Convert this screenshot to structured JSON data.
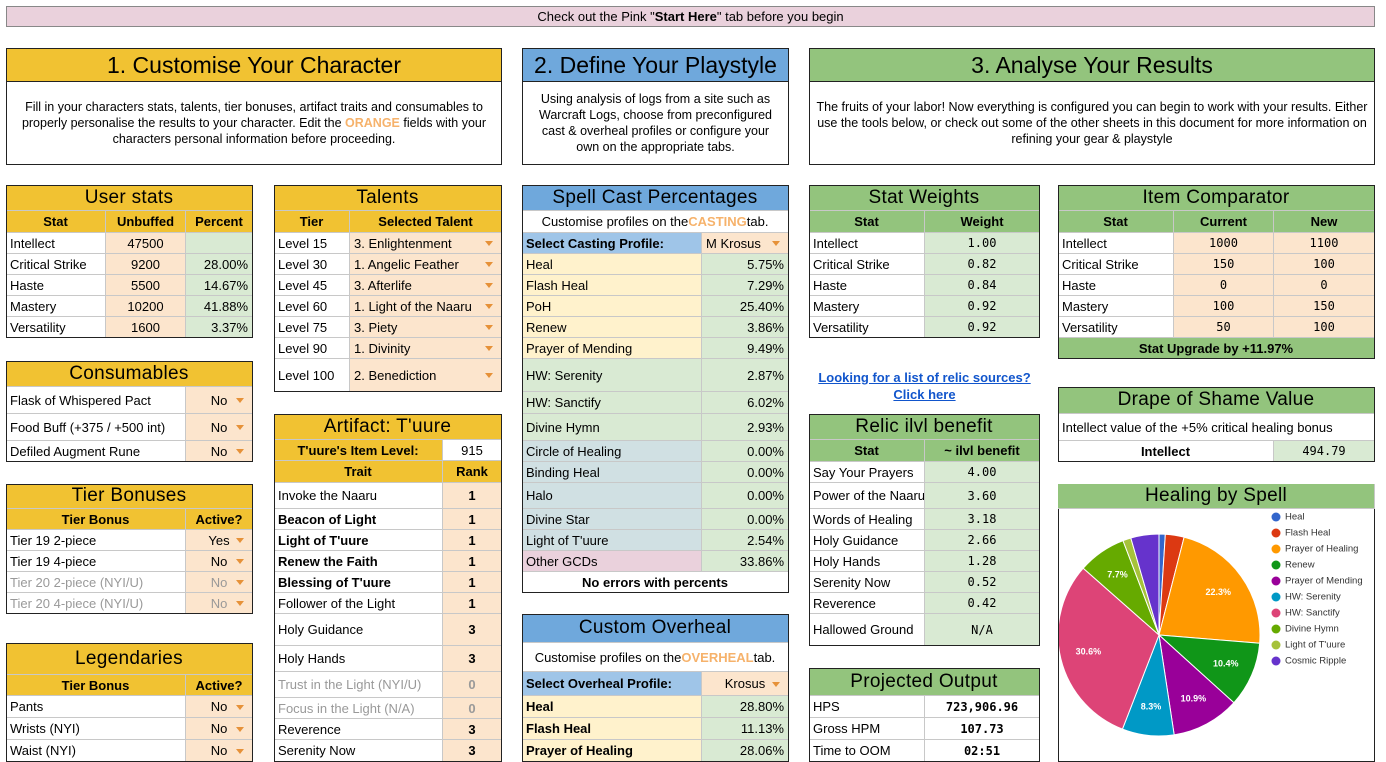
{
  "banner": {
    "before": "Check out the Pink \"",
    "bold": "Start Here",
    "after": "\" tab before you begin"
  },
  "sections": [
    {
      "title": "1. Customise Your Character",
      "description": {
        "before": "Fill in your characters stats, talents, tier bonuses, artifact traits and consumables to properly personalise the results to your character. Edit the ",
        "highlight": "ORANGE",
        "after": " fields with your characters personal information before proceeding."
      }
    },
    {
      "title": "2. Define Your Playstyle",
      "description": "Using analysis of logs from a site such as Warcraft Logs, choose from preconfigured cast & overheal profiles or configure your own on the appropriate tabs."
    },
    {
      "title": "3. Analyse Your Results",
      "description": "The fruits of your labor! Now everything is configured you can begin to work with your results. Either use the tools below, or check out some of the other sheets in this document for more information on refining your gear & playstyle"
    }
  ],
  "panels": {
    "user_stats": {
      "title": "User stats",
      "header": [
        "Stat",
        "Unbuffed",
        "Percent"
      ],
      "rows": [
        [
          "Intellect",
          "47500",
          null
        ],
        [
          "Critical Strike",
          "9200",
          "28.00%"
        ],
        [
          "Haste",
          "5500",
          "14.67%"
        ],
        [
          "Mastery",
          "10200",
          "41.88%"
        ],
        [
          "Versatility",
          "1600",
          "3.37%"
        ]
      ]
    },
    "consumables": {
      "title": "Consumables",
      "rows": [
        [
          "Flask of Whispered Pact",
          "No"
        ],
        [
          "Food Buff (+375 / +500 int)",
          "No"
        ],
        [
          "Defiled Augment Rune",
          "No"
        ]
      ]
    },
    "tier_bonuses": {
      "title": "Tier Bonuses",
      "header": [
        "Tier Bonus",
        "Active?"
      ],
      "rows": [
        [
          "Tier 19 2-piece",
          "Yes"
        ],
        [
          "Tier 19 4-piece",
          "No"
        ],
        [
          "Tier 20 2-piece (NYI/U)",
          "No"
        ],
        [
          "Tier 20 4-piece (NYI/U)",
          "No"
        ]
      ]
    },
    "legendaries": {
      "title": "Legendaries",
      "header": [
        "Tier Bonus",
        "Active?"
      ],
      "rows": [
        [
          "Pants",
          "No"
        ],
        [
          "Wrists (NYI)",
          "No"
        ],
        [
          "Waist (NYI)",
          "No"
        ]
      ]
    },
    "talents": {
      "title": "Talents",
      "header": [
        "Tier",
        "Selected Talent"
      ],
      "rows": [
        [
          "Level 15",
          "3. Enlightenment"
        ],
        [
          "Level 30",
          "1. Angelic Feather"
        ],
        [
          "Level 45",
          "3. Afterlife"
        ],
        [
          "Level 60",
          "1. Light of the Naaru"
        ],
        [
          "Level 75",
          "3. Piety"
        ],
        [
          "Level 90",
          "1. Divinity"
        ],
        [
          "Level 100",
          "2. Benediction"
        ]
      ]
    },
    "artifact": {
      "title": "Artifact: T'uure",
      "setting": [
        "T'uure's Item Level:",
        "915"
      ],
      "header": [
        "Trait",
        "Rank"
      ],
      "rows": [
        [
          "Invoke the Naaru",
          "1"
        ],
        [
          "Beacon of Light",
          "1"
        ],
        [
          "Light of T'uure",
          "1"
        ],
        [
          "Renew the Faith",
          "1"
        ],
        [
          "Blessing of T'uure",
          "1"
        ],
        [
          "Follower of the Light",
          "1"
        ],
        [
          "Holy Guidance",
          "3"
        ],
        [
          "Holy Hands",
          "3"
        ],
        [
          "Trust in the Light (NYI/U)",
          "0"
        ],
        [
          "Focus in the Light (N/A)",
          "0"
        ],
        [
          "Reverence",
          "3"
        ],
        [
          "Serenity Now",
          "3"
        ]
      ]
    },
    "spell_cast": {
      "title": "Spell Cast Percentages",
      "sub": {
        "before": "Customise profiles on the ",
        "highlight": "CASTING",
        "after": " tab."
      },
      "setting": [
        "Select Casting Profile:",
        "M Krosus"
      ],
      "rows": [
        [
          "Heal",
          "5.75%"
        ],
        [
          "Flash Heal",
          "7.29%"
        ],
        [
          "PoH",
          "25.40%"
        ],
        [
          "Renew",
          "3.86%"
        ],
        [
          "Prayer of Mending",
          "9.49%"
        ],
        [
          "HW: Serenity",
          "2.87%"
        ],
        [
          "HW: Sanctify",
          "6.02%"
        ],
        [
          "Divine Hymn",
          "2.93%"
        ],
        [
          "Circle of Healing",
          "0.00%"
        ],
        [
          "Binding Heal",
          "0.00%"
        ],
        [
          "Halo",
          "0.00%"
        ],
        [
          "Divine Star",
          "0.00%"
        ],
        [
          "Light of T'uure",
          "2.54%"
        ],
        [
          "Other GCDs",
          "33.86%"
        ]
      ],
      "footer": "No errors with percents"
    },
    "overheal": {
      "title": "Custom Overheal",
      "sub": {
        "before": "Customise profiles on the ",
        "highlight": "OVERHEAL",
        "after": " tab."
      },
      "setting": [
        "Select Overheal Profile:",
        "Krosus"
      ],
      "rows": [
        [
          "Heal",
          "28.80%"
        ],
        [
          "Flash Heal",
          "11.13%"
        ],
        [
          "Prayer of Healing",
          "28.06%"
        ]
      ]
    },
    "stat_weights": {
      "title": "Stat Weights",
      "header": [
        "Stat",
        "Weight"
      ],
      "rows": [
        [
          "Intellect",
          "1.00"
        ],
        [
          "Critical Strike",
          "0.82"
        ],
        [
          "Haste",
          "0.84"
        ],
        [
          "Mastery",
          "0.92"
        ],
        [
          "Versatility",
          "0.92"
        ]
      ]
    },
    "relic": {
      "title": "Relic ilvl benefit",
      "header": [
        "Stat",
        "~ ilvl benefit"
      ],
      "rows": [
        [
          "Say Your Prayers",
          "4.00"
        ],
        [
          "Power of the Naaru",
          "3.60"
        ],
        [
          "Words of Healing",
          "3.18"
        ],
        [
          "Holy Guidance",
          "2.66"
        ],
        [
          "Holy Hands",
          "1.28"
        ],
        [
          "Serenity Now",
          "0.52"
        ],
        [
          "Reverence",
          "0.42"
        ],
        [
          "Hallowed Ground",
          "N/A"
        ]
      ]
    },
    "projected": {
      "title": "Projected Output",
      "rows": [
        [
          "HPS",
          "723,906.96"
        ],
        [
          "Gross HPM",
          "107.73"
        ],
        [
          "Time to OOM",
          "02:51"
        ]
      ]
    },
    "item_comparator": {
      "title": "Item Comparator",
      "header": [
        "Stat",
        "Current",
        "New"
      ],
      "rows": [
        [
          "Intellect",
          "1000",
          "1100"
        ],
        [
          "Critical Strike",
          "150",
          "100"
        ],
        [
          "Haste",
          "0",
          "0"
        ],
        [
          "Mastery",
          "100",
          "150"
        ],
        [
          "Versatility",
          "50",
          "100"
        ]
      ],
      "footer": "Stat Upgrade by +11.97%"
    },
    "drape": {
      "title": "Drape of Shame Value",
      "sub": "Intellect value of the +5% critical healing bonus",
      "rows": [
        [
          "Intellect",
          "494.79"
        ]
      ]
    }
  },
  "relic_link": {
    "question": "Looking for a list of relic sources?",
    "link": "Click here"
  },
  "chart_data": {
    "type": "pie",
    "title": "Healing by Spell",
    "categories": [
      "Heal",
      "Flash Heal",
      "Prayer of Healing",
      "Renew",
      "Prayer of Mending",
      "HW: Serenity",
      "HW: Sanctify",
      "Divine Hymn",
      "Light of T'uure",
      "Cosmic Ripple"
    ],
    "values": [
      1.0,
      3.0,
      22.3,
      10.4,
      10.9,
      8.3,
      30.6,
      7.7,
      1.3,
      4.5
    ],
    "value_labels": [
      null,
      null,
      "22.3%",
      "10.4%",
      "10.9%",
      "8.3%",
      "30.6%",
      "7.7%",
      null,
      null
    ],
    "colors": [
      "#3366cc",
      "#dc3912",
      "#ff9900",
      "#109618",
      "#990099",
      "#0099c6",
      "#dd4477",
      "#66aa00",
      "#a6c23a",
      "#6633cc"
    ],
    "legend": "right"
  }
}
